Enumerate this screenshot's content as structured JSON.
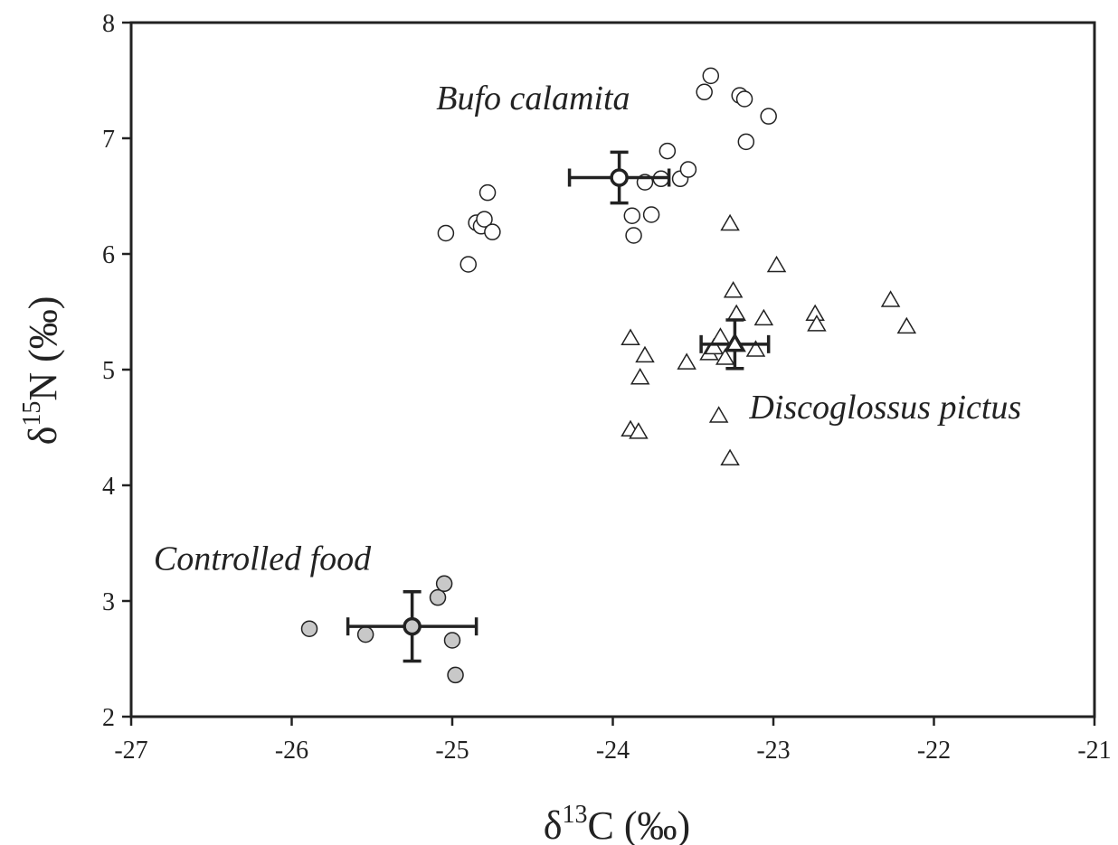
{
  "chart_data": {
    "type": "scatter",
    "title": "",
    "xlabel": {
      "prefix": "δ",
      "sup": "13",
      "main": "C (‰)"
    },
    "ylabel": {
      "prefix": "δ",
      "sup": "15",
      "main": "N (‰)"
    },
    "xlim": [
      -27,
      -21
    ],
    "ylim": [
      2,
      8
    ],
    "xticks": [
      -27,
      -26,
      -25,
      -24,
      -23,
      -22,
      -21
    ],
    "yticks": [
      2,
      3,
      4,
      5,
      6,
      7,
      8
    ],
    "grid": false,
    "legend": "none",
    "series": [
      {
        "name": "Bufo calamita",
        "marker": "circle",
        "fill": "#ffffff",
        "label_anchor": [
          -25.1,
          7.25
        ],
        "points": [
          [
            -25.04,
            6.18
          ],
          [
            -24.9,
            5.91
          ],
          [
            -24.85,
            6.27
          ],
          [
            -24.82,
            6.24
          ],
          [
            -24.8,
            6.3
          ],
          [
            -24.78,
            6.53
          ],
          [
            -24.75,
            6.19
          ],
          [
            -23.88,
            6.33
          ],
          [
            -23.87,
            6.16
          ],
          [
            -23.8,
            6.62
          ],
          [
            -23.76,
            6.34
          ],
          [
            -23.7,
            6.65
          ],
          [
            -23.66,
            6.89
          ],
          [
            -23.58,
            6.65
          ],
          [
            -23.53,
            6.73
          ],
          [
            -23.43,
            7.4
          ],
          [
            -23.39,
            7.54
          ],
          [
            -23.21,
            7.37
          ],
          [
            -23.18,
            7.34
          ],
          [
            -23.17,
            6.97
          ],
          [
            -23.03,
            7.19
          ]
        ],
        "mean": {
          "x": -23.96,
          "y": 6.66,
          "xerr": 0.31,
          "yerr": 0.22
        }
      },
      {
        "name": "Discoglossus pictus",
        "marker": "triangle",
        "fill": "#ffffff",
        "label_anchor": [
          -23.15,
          4.58
        ],
        "points": [
          [
            -23.89,
            5.27
          ],
          [
            -23.89,
            4.48
          ],
          [
            -23.84,
            4.46
          ],
          [
            -23.83,
            4.93
          ],
          [
            -23.8,
            5.12
          ],
          [
            -23.54,
            5.06
          ],
          [
            -23.4,
            5.14
          ],
          [
            -23.37,
            5.19
          ],
          [
            -23.33,
            5.28
          ],
          [
            -23.34,
            4.6
          ],
          [
            -23.3,
            5.1
          ],
          [
            -23.27,
            6.26
          ],
          [
            -23.27,
            4.23
          ],
          [
            -23.25,
            5.68
          ],
          [
            -23.23,
            5.48
          ],
          [
            -23.11,
            5.17
          ],
          [
            -23.06,
            5.44
          ],
          [
            -22.98,
            5.9
          ],
          [
            -22.74,
            5.48
          ],
          [
            -22.73,
            5.39
          ],
          [
            -22.27,
            5.6
          ],
          [
            -22.17,
            5.37
          ]
        ],
        "mean": {
          "x": -23.24,
          "y": 5.22,
          "xerr": 0.21,
          "yerr": 0.21
        }
      },
      {
        "name": "Controlled food",
        "marker": "circle",
        "fill": "#c8c8c8",
        "label_anchor": [
          -26.86,
          3.27
        ],
        "points": [
          [
            -25.89,
            2.76
          ],
          [
            -25.54,
            2.71
          ],
          [
            -25.09,
            3.03
          ],
          [
            -25.05,
            3.15
          ],
          [
            -25.0,
            2.66
          ],
          [
            -24.98,
            2.36
          ]
        ],
        "mean": {
          "x": -25.25,
          "y": 2.78,
          "xerr": 0.4,
          "yerr": 0.3
        }
      }
    ]
  }
}
